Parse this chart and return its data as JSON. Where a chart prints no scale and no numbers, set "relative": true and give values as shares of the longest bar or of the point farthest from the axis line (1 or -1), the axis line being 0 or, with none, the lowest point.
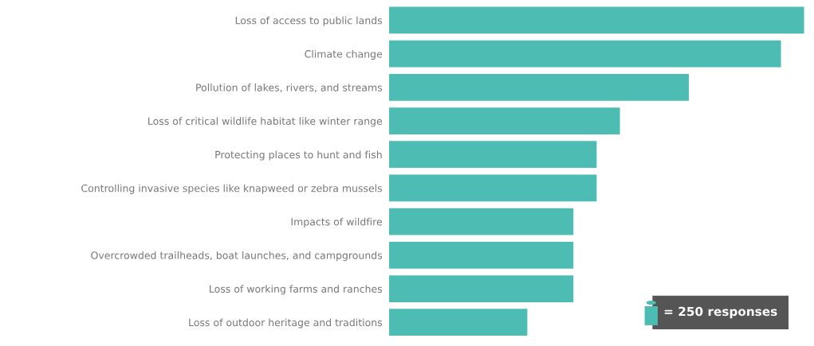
{
  "chart_data": {
    "type": "bar",
    "orientation": "horizontal",
    "relative": true,
    "categories": [
      "Loss of access to public lands",
      "Climate change",
      "Pollution of lakes, rivers, and streams",
      "Loss of critical wildlife habitat like winter range",
      "Protecting places to hunt and fish",
      "Controlling invasive species like knapweed or zebra mussels",
      "Impacts of wildfire",
      "Overcrowded trailheads, boat launches, and campgrounds",
      "Loss of working farms and ranches",
      "Loss of outdoor heritage and traditions"
    ],
    "values": [
      1,
      0.944,
      0.722,
      0.556,
      0.5,
      0.5,
      0.444,
      0.444,
      0.444,
      0.333
    ],
    "color": "#4dbdb4",
    "annotations": [
      "= 250 responses"
    ]
  }
}
